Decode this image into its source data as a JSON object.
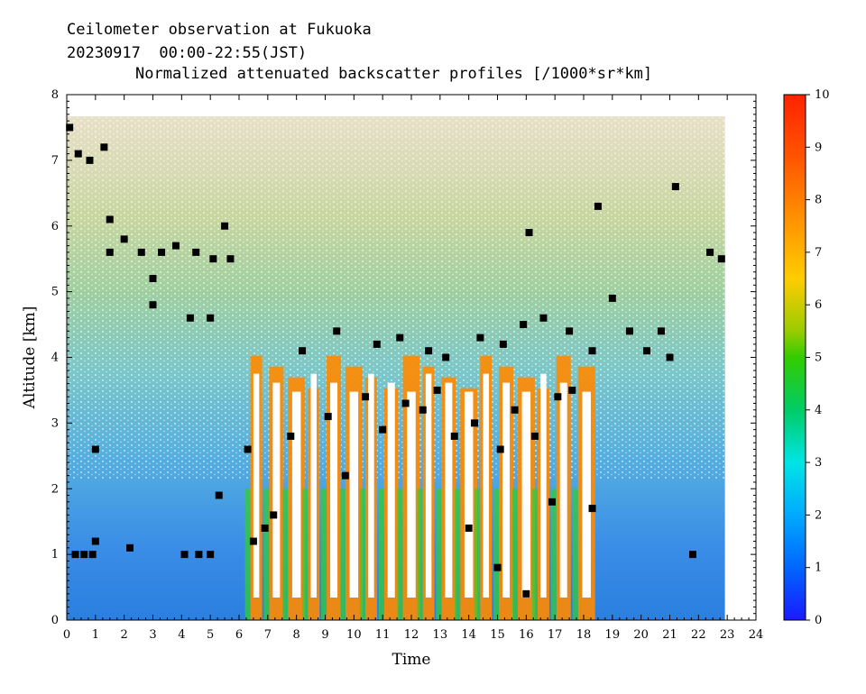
{
  "header": {
    "line1": "Ceilometer observation at Fukuoka",
    "line2": "20230917  00:00-22:55(JST)",
    "line3": "Normalized attenuated backscatter profiles [/1000*sr*km]"
  },
  "chart_data": {
    "type": "heatmap",
    "title": "Normalized attenuated backscatter profiles [/1000*sr*km]",
    "xlabel": "Time",
    "ylabel": "Altitude [km]",
    "xlim": [
      0,
      24
    ],
    "ylim": [
      0,
      8
    ],
    "x_ticks": [
      "0",
      "1",
      "2",
      "3",
      "4",
      "5",
      "6",
      "7",
      "8",
      "9",
      "10",
      "11",
      "12",
      "13",
      "14",
      "15",
      "16",
      "17",
      "18",
      "19",
      "20",
      "21",
      "22",
      "23",
      "24"
    ],
    "y_ticks": [
      "0",
      "1",
      "2",
      "3",
      "4",
      "5",
      "6",
      "7",
      "8"
    ],
    "data_extent": {
      "time_hours": [
        0,
        22.92
      ],
      "altitude_km": [
        0,
        7.67
      ]
    },
    "colorbar": {
      "range": [
        0,
        10
      ],
      "ticks": [
        "0",
        "1",
        "2",
        "3",
        "4",
        "5",
        "6",
        "7",
        "8",
        "9",
        "10"
      ],
      "colors": [
        "#1a1aff",
        "#0066ff",
        "#00aaff",
        "#00e5e5",
        "#00cc66",
        "#33cc00",
        "#99cc00",
        "#ffcc00",
        "#ff9900",
        "#ff5500",
        "#ff2200"
      ]
    },
    "features": {
      "boundary_layer_top_km": 1.0,
      "convective_columns_hours": [
        6.6,
        7.3,
        8.0,
        8.6,
        9.3,
        10.0,
        10.6,
        11.3,
        12.0,
        12.6,
        13.3,
        14.0,
        14.6,
        15.3,
        16.0,
        16.6,
        17.3,
        18.1
      ],
      "cloud_top_km": 4.3,
      "detected_cloud_base_layers_km": [
        1.0,
        2.6,
        4.0,
        5.6,
        7.0
      ]
    }
  }
}
